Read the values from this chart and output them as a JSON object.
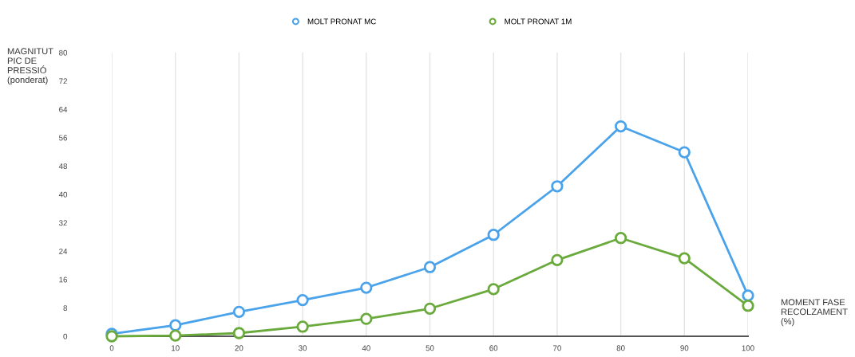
{
  "chart_data": {
    "type": "line",
    "x": [
      0,
      10,
      20,
      30,
      40,
      50,
      60,
      70,
      80,
      90,
      100
    ],
    "series": [
      {
        "name": "MOLT PRONAT MC",
        "color": "#4aa3ea",
        "values": [
          0.7,
          3.1,
          6.9,
          10.2,
          13.7,
          19.5,
          28.6,
          42.3,
          59.2,
          51.9,
          11.5
        ]
      },
      {
        "name": "MOLT PRONAT 1M",
        "color": "#6aaa3c",
        "values": [
          0,
          0.2,
          0.9,
          2.7,
          4.9,
          7.8,
          13.3,
          21.5,
          27.7,
          22,
          8.6
        ]
      }
    ],
    "ylabel": "MAGNITUT\nPIC DE\nPRESSIÓ\n(ponderat)",
    "xlabel": "MOMENT FASE\nRECOLZAMENT\n(%)",
    "xlim": [
      0,
      100
    ],
    "xticks": [
      0,
      10,
      20,
      30,
      40,
      50,
      60,
      70,
      80,
      90,
      100
    ],
    "ylim": [
      0,
      80
    ],
    "yticks": [
      0,
      8,
      16,
      24,
      32,
      40,
      48,
      56,
      64,
      72,
      80
    ],
    "grid": "x",
    "legend": "top",
    "marker": "circle",
    "line_style": "solid"
  }
}
